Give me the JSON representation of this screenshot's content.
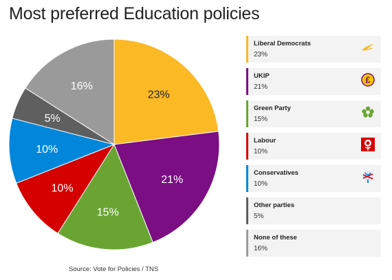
{
  "chart_data": {
    "type": "pie",
    "title": "Most preferred Education policies",
    "source": "Source: Vote for Policies / TNS",
    "slices": [
      {
        "label": "Liberal Democrats",
        "value": 23,
        "display": "23%",
        "color": "#fbb925",
        "logo": "lib-dem-bird-icon"
      },
      {
        "label": "UKIP",
        "value": 21,
        "display": "21%",
        "color": "#7b0e83",
        "logo": "ukip-pound-icon"
      },
      {
        "label": "Green Party",
        "value": 15,
        "display": "15%",
        "color": "#6aa533",
        "logo": "green-party-flower-icon"
      },
      {
        "label": "Labour",
        "value": 10,
        "display": "10%",
        "color": "#d50000",
        "logo": "labour-rose-icon"
      },
      {
        "label": "Conservatives",
        "value": 10,
        "display": "10%",
        "color": "#0087dc",
        "logo": "conservative-tree-icon"
      },
      {
        "label": "Other parties",
        "value": 5,
        "display": "5%",
        "color": "#5f5f5f",
        "logo": ""
      },
      {
        "label": "None of these",
        "value": 16,
        "display": "16%",
        "color": "#9a9a9a",
        "logo": ""
      }
    ]
  }
}
